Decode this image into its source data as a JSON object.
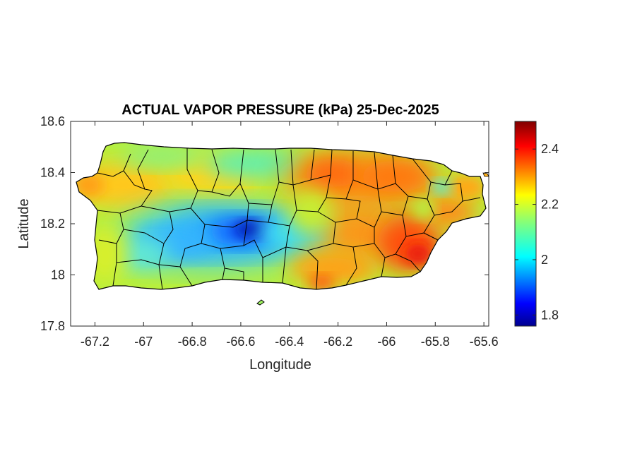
{
  "title": "ACTUAL VAPOR PRESSURE (kPa) 25-Dec-2025",
  "axes": {
    "xlabel": "Longitude",
    "ylabel": "Latitude",
    "xlim": [
      -67.3,
      -65.58
    ],
    "ylim": [
      17.8,
      18.6
    ],
    "xticks": [
      "-67.2",
      "-67",
      "-66.8",
      "-66.6",
      "-66.4",
      "-66.2",
      "-66",
      "-65.8",
      "-65.6"
    ],
    "yticks": [
      "18.6",
      "18.4",
      "18.2",
      "18",
      "17.8"
    ],
    "xtick_values": [
      -67.2,
      -67.0,
      -66.8,
      -66.6,
      -66.4,
      -66.2,
      -66.0,
      -65.8,
      -65.6
    ],
    "ytick_values": [
      18.6,
      18.4,
      18.2,
      18.0,
      17.8
    ]
  },
  "colorbar": {
    "colormap": "jet",
    "min": 1.76,
    "max": 2.5,
    "ticks": [
      "2.4",
      "2.2",
      "2",
      "1.8"
    ],
    "tick_values": [
      2.4,
      2.2,
      2.0,
      1.8
    ]
  },
  "map": {
    "region": "Puerto Rico",
    "boundary_color": "#000000",
    "field_pattern": {
      "low_center": {
        "lon": -66.55,
        "lat": 18.17,
        "value": 1.78
      },
      "high_southeast": {
        "lon": -65.88,
        "lat": 18.08,
        "value": 2.45
      },
      "high_northeast": {
        "lon": -66.1,
        "lat": 18.4,
        "value": 2.38
      }
    }
  }
}
